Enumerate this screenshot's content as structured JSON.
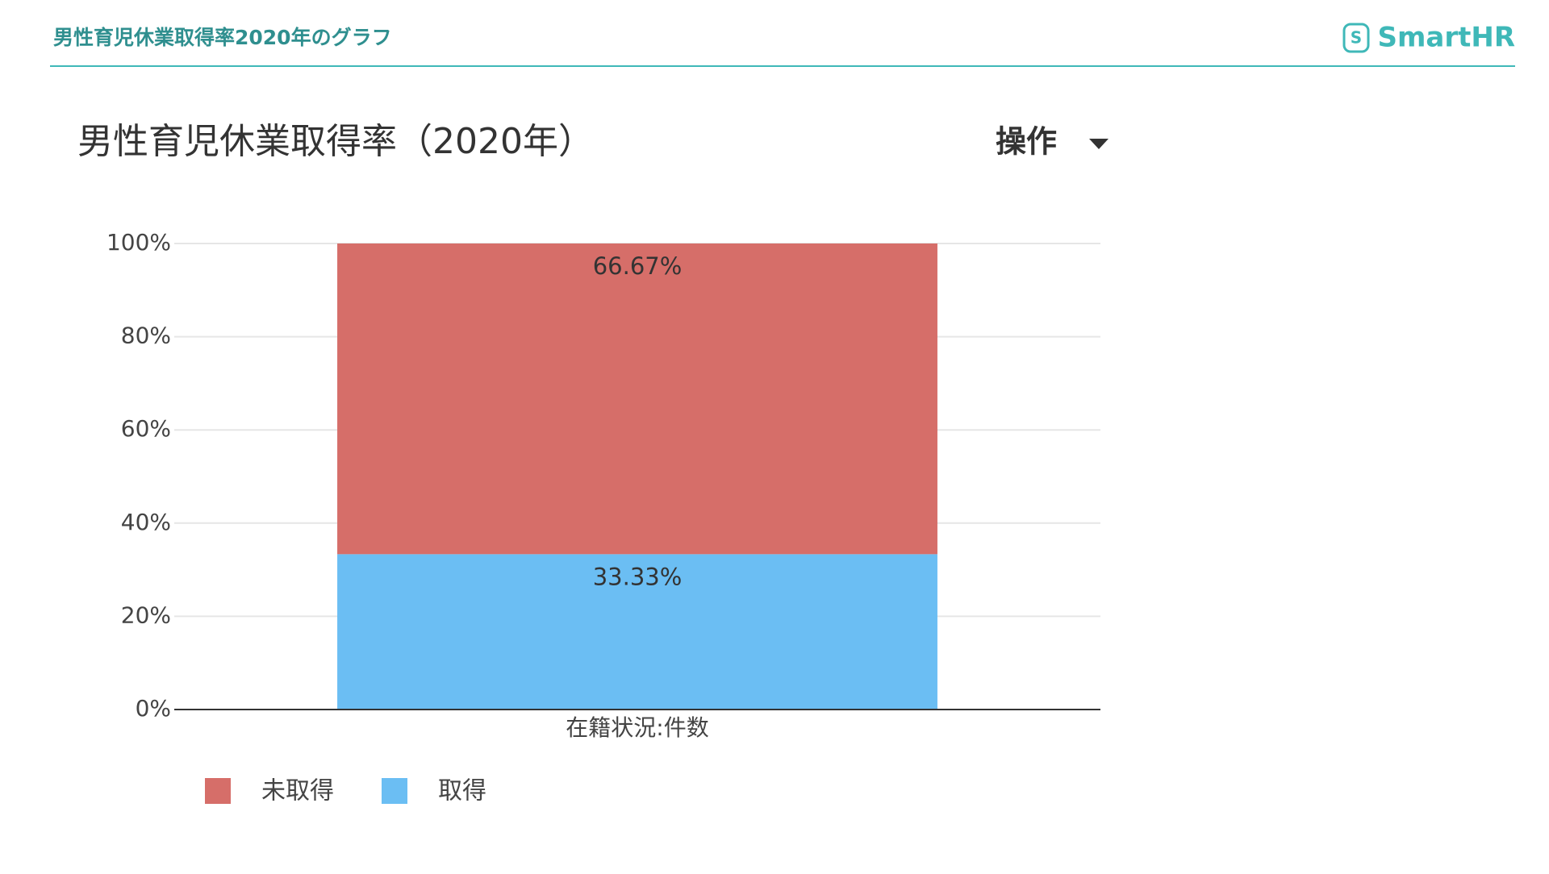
{
  "header": {
    "title": "男性育児休業取得率2020年のグラフ",
    "logo": "SmartHR"
  },
  "chart_data": {
    "type": "stacked_bar",
    "title": "男性育児休業取得率（2020年）",
    "menu": "操作",
    "categories": [
      "在籍状況:件数"
    ],
    "series": [
      {
        "name": "未取得",
        "color": "#d66e69",
        "values": [
          66.67
        ],
        "value_labels": [
          "66.67%"
        ]
      },
      {
        "name": "取得",
        "color": "#6bbef3",
        "values": [
          33.33
        ],
        "value_labels": [
          "33.33%"
        ]
      }
    ],
    "ylim": [
      0,
      100
    ],
    "yticks": [
      {
        "value": 0,
        "label": "0%"
      },
      {
        "value": 20,
        "label": "20%"
      },
      {
        "value": 40,
        "label": "40%"
      },
      {
        "value": 60,
        "label": "60%"
      },
      {
        "value": 80,
        "label": "80%"
      },
      {
        "value": 100,
        "label": "100%"
      }
    ],
    "grid": true,
    "legend": "bottom"
  }
}
